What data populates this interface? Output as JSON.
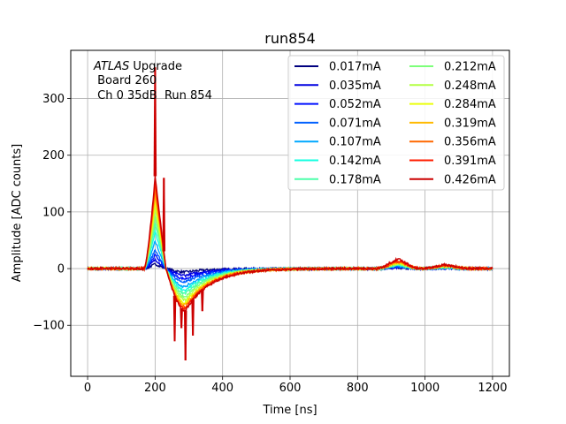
{
  "chart_data": {
    "type": "line",
    "title": "run854",
    "xlabel": "Time [ns]",
    "ylabel": "Amplitude [ADC counts]",
    "xlim": [
      -50,
      1250
    ],
    "ylim": [
      -190,
      385
    ],
    "xticks": [
      0,
      200,
      400,
      600,
      800,
      1000,
      1200
    ],
    "yticks": [
      -100,
      0,
      100,
      200,
      300
    ],
    "grid": true,
    "legend_placement": "top-right",
    "legend_columns": 2,
    "annotation": {
      "italic": "ATLAS",
      "rest": " Upgrade",
      "line2": " Board 260",
      "line3": " Ch 0 35dB  Run 854"
    },
    "series": [
      {
        "name": "0.017mA",
        "color": "#00007f",
        "peak": 8,
        "under": -6,
        "bump": 1
      },
      {
        "name": "0.035mA",
        "color": "#0000e0",
        "peak": 16,
        "under": -12,
        "bump": 2
      },
      {
        "name": "0.052mA",
        "color": "#0010ff",
        "peak": 24,
        "under": -18,
        "bump": 3
      },
      {
        "name": "0.071mA",
        "color": "#0060ff",
        "peak": 33,
        "under": -24,
        "bump": 4
      },
      {
        "name": "0.107mA",
        "color": "#00a8ff",
        "peak": 49,
        "under": -32,
        "bump": 5
      },
      {
        "name": "0.142mA",
        "color": "#16ffe1",
        "peak": 65,
        "under": -38,
        "bump": 6
      },
      {
        "name": "0.178mA",
        "color": "#4dffaa",
        "peak": 80,
        "under": -44,
        "bump": 7
      },
      {
        "name": "0.212mA",
        "color": "#7dff7a",
        "peak": 92,
        "under": -50,
        "bump": 8
      },
      {
        "name": "0.248mA",
        "color": "#b4ff43",
        "peak": 105,
        "under": -55,
        "bump": 9
      },
      {
        "name": "0.284mA",
        "color": "#ebff0c",
        "peak": 118,
        "under": -60,
        "bump": 10
      },
      {
        "name": "0.319mA",
        "color": "#ffb900",
        "peak": 130,
        "under": -64,
        "bump": 11
      },
      {
        "name": "0.356mA",
        "color": "#ff6800",
        "peak": 142,
        "under": -68,
        "bump": 12
      },
      {
        "name": "0.391mA",
        "color": "#ff1e00",
        "peak": 152,
        "under": -71,
        "bump": 13
      },
      {
        "name": "0.426mA",
        "color": "#cc0000",
        "peak": 163,
        "under": -74,
        "bump": 16
      }
    ],
    "spikes": [
      {
        "x": 200,
        "y": 355
      },
      {
        "x": 258,
        "y": -128
      },
      {
        "x": 278,
        "y": -105
      },
      {
        "x": 290,
        "y": -162
      },
      {
        "x": 312,
        "y": -118
      },
      {
        "x": 340,
        "y": -75
      },
      {
        "x": 226,
        "y": 160
      }
    ]
  }
}
